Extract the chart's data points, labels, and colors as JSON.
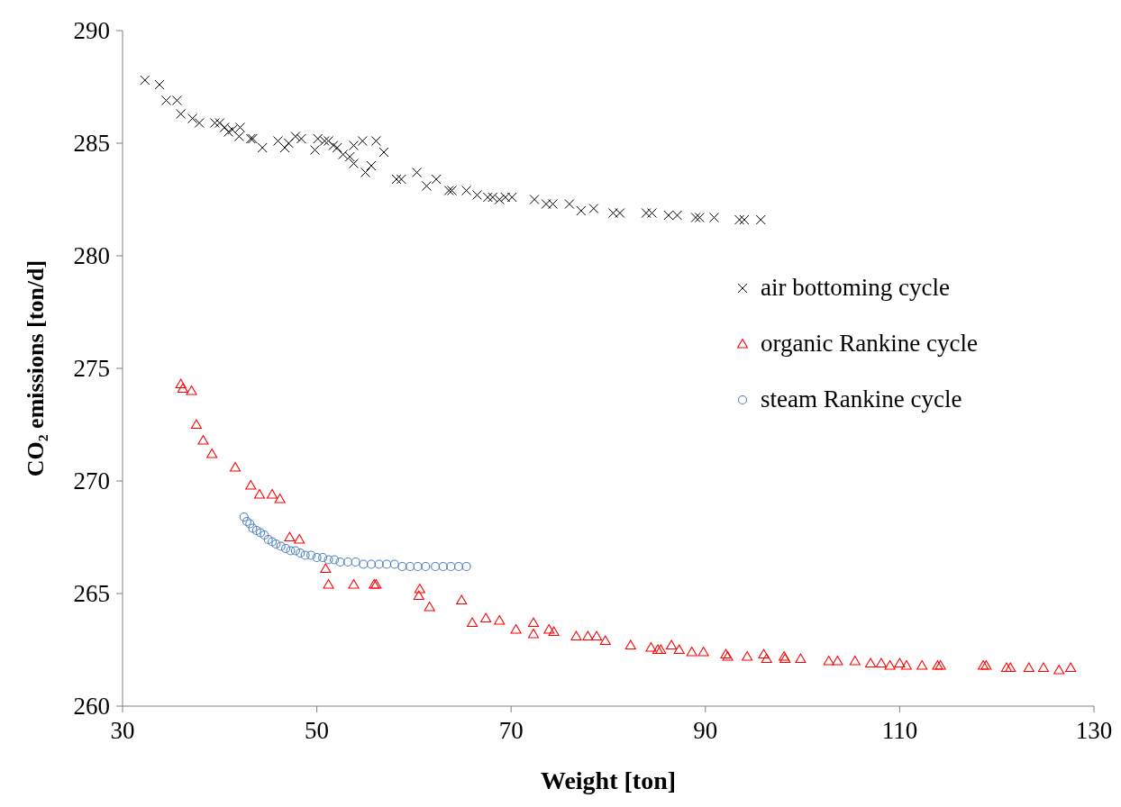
{
  "chart_data": {
    "type": "scatter",
    "xlabel": "Weight [ton]",
    "ylabel": "CO₂ emissions [ton/d]",
    "xlim": [
      30,
      130
    ],
    "xticks": [
      30,
      50,
      70,
      90,
      110,
      130
    ],
    "ylim": [
      260,
      290
    ],
    "yticks": [
      260,
      265,
      270,
      275,
      280,
      285,
      290
    ],
    "legend": "right",
    "series": [
      {
        "name": "air bottoming cycle",
        "color": "#000000",
        "marker": "cross",
        "x": [
          32.3,
          33.8,
          34.5,
          35.6,
          36.0,
          37.2,
          37.9,
          39.5,
          40.0,
          40.5,
          40.9,
          41.3,
          42.0,
          42.1,
          43.2,
          43.4,
          44.4,
          46.0,
          46.7,
          47.1,
          47.8,
          48.4,
          49.8,
          50.1,
          50.8,
          51.2,
          51.7,
          52.1,
          52.7,
          53.4,
          53.8,
          53.8,
          54.7,
          55.0,
          55.6,
          56.1,
          56.9,
          58.2,
          58.7,
          60.3,
          61.3,
          62.3,
          63.6,
          63.9,
          65.4,
          66.5,
          67.6,
          68.1,
          68.8,
          69.4,
          70.1,
          72.4,
          73.6,
          74.3,
          76.0,
          77.2,
          78.5,
          80.5,
          81.2,
          83.9,
          84.5,
          86.2,
          87.1,
          89.0,
          89.4,
          90.9,
          93.5,
          94.0,
          95.7
        ],
        "values": [
          287.8,
          287.6,
          286.9,
          286.9,
          286.3,
          286.1,
          285.9,
          285.9,
          285.9,
          285.7,
          285.5,
          285.6,
          285.3,
          285.7,
          285.2,
          285.2,
          284.8,
          285.1,
          284.8,
          285.0,
          285.3,
          285.2,
          284.7,
          285.2,
          285.1,
          285.1,
          284.9,
          284.8,
          284.5,
          284.4,
          284.1,
          284.9,
          285.1,
          283.7,
          284.0,
          285.1,
          284.6,
          283.4,
          283.4,
          283.7,
          283.1,
          283.4,
          282.9,
          282.9,
          282.9,
          282.7,
          282.6,
          282.6,
          282.5,
          282.6,
          282.6,
          282.5,
          282.3,
          282.3,
          282.3,
          282.0,
          282.1,
          281.9,
          281.9,
          281.9,
          281.9,
          281.8,
          281.8,
          281.7,
          281.7,
          281.7,
          281.6,
          281.6,
          281.6
        ]
      },
      {
        "name": "organic Rankine cycle",
        "color": "#ff0000",
        "marker": "triangle",
        "x": [
          36.0,
          36.2,
          37.1,
          37.6,
          38.3,
          39.2,
          41.6,
          43.2,
          44.1,
          45.4,
          46.2,
          47.2,
          48.2,
          50.9,
          51.2,
          53.8,
          55.9,
          56.1,
          60.6,
          60.5,
          61.6,
          64.9,
          66.0,
          67.4,
          68.8,
          70.5,
          72.3,
          72.3,
          73.9,
          74.4,
          76.7,
          77.9,
          78.8,
          79.7,
          82.3,
          84.4,
          85.1,
          85.4,
          86.5,
          87.3,
          88.6,
          89.8,
          92.1,
          92.3,
          94.3,
          96.0,
          96.3,
          98.1,
          98.2,
          99.8,
          102.7,
          103.6,
          105.4,
          107.0,
          108.1,
          109.0,
          110.0,
          110.7,
          112.3,
          113.9,
          114.2,
          118.6,
          118.9,
          121.0,
          121.4,
          123.3,
          124.8,
          126.4,
          127.6
        ],
        "values": [
          274.3,
          274.1,
          274.0,
          272.5,
          271.8,
          271.2,
          270.6,
          269.8,
          269.4,
          269.4,
          269.2,
          267.5,
          267.4,
          266.1,
          265.4,
          265.4,
          265.4,
          265.4,
          265.2,
          264.9,
          264.4,
          264.7,
          263.7,
          263.9,
          263.8,
          263.4,
          263.7,
          263.2,
          263.4,
          263.3,
          263.1,
          263.1,
          263.1,
          262.9,
          262.7,
          262.6,
          262.5,
          262.5,
          262.7,
          262.5,
          262.4,
          262.4,
          262.3,
          262.2,
          262.2,
          262.3,
          262.1,
          262.2,
          262.1,
          262.1,
          262.0,
          262.0,
          262.0,
          261.9,
          261.9,
          261.8,
          261.9,
          261.8,
          261.8,
          261.8,
          261.8,
          261.8,
          261.8,
          261.7,
          261.7,
          261.7,
          261.7,
          261.6,
          261.7
        ]
      },
      {
        "name": "steam Rankine cycle",
        "color": "#4f81bd",
        "marker": "circle",
        "x": [
          42.5,
          42.8,
          43.1,
          43.4,
          43.8,
          44.2,
          44.6,
          45.0,
          45.4,
          45.8,
          46.3,
          46.8,
          47.3,
          47.8,
          48.3,
          48.8,
          49.4,
          50.0,
          50.6,
          51.2,
          51.8,
          52.4,
          53.2,
          54.0,
          54.8,
          55.6,
          56.4,
          57.2,
          58.0,
          58.8,
          59.6,
          60.4,
          61.2,
          62.2,
          63.0,
          63.8,
          64.6,
          65.4
        ],
        "values": [
          268.4,
          268.2,
          268.1,
          267.9,
          267.8,
          267.7,
          267.6,
          267.4,
          267.3,
          267.2,
          267.1,
          267.0,
          266.9,
          266.9,
          266.8,
          266.7,
          266.7,
          266.6,
          266.6,
          266.5,
          266.5,
          266.4,
          266.4,
          266.4,
          266.3,
          266.3,
          266.3,
          266.3,
          266.3,
          266.2,
          266.2,
          266.2,
          266.2,
          266.2,
          266.2,
          266.2,
          266.2,
          266.2
        ]
      }
    ]
  }
}
